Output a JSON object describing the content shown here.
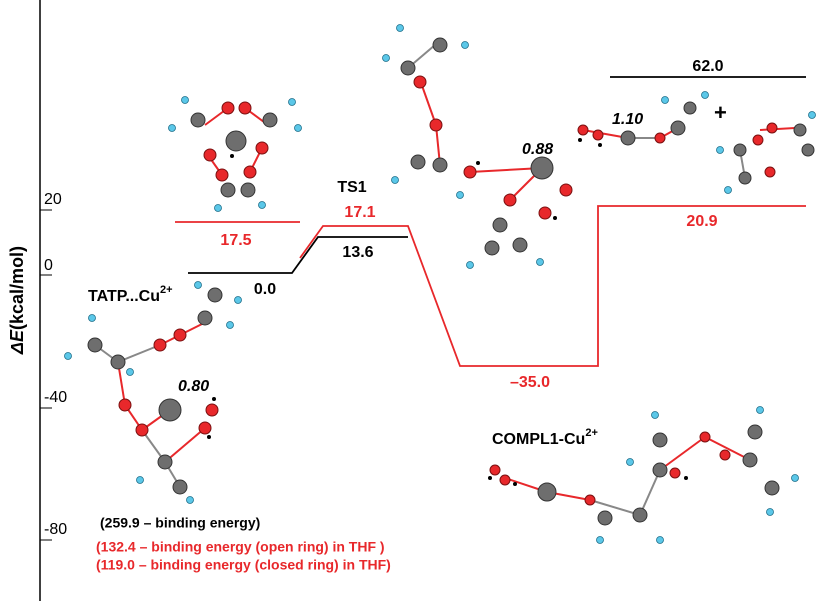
{
  "axis": {
    "label": {
      "symbol": "ΔE",
      "unit": "(kcal/mol)"
    },
    "ticks": [
      "20",
      "0",
      "-40",
      "-80"
    ]
  },
  "levels": [
    "0.0",
    "13.6",
    "17.5",
    "17.1",
    "–35.0",
    "20.9",
    "62.0"
  ],
  "states": {
    "ts": {
      "text": "TS1"
    },
    "reactant": {
      "text": "TATP...Cu",
      "superscript": "2+"
    },
    "complex": {
      "text": "COMPL1-Cu",
      "superscript": "2+"
    }
  },
  "distances": [
    "0.80",
    "0.88",
    "1.10"
  ],
  "plus": "+",
  "notes": [
    "(259.9 – binding energy)",
    "(132.4 – binding energy (open ring) in THF )",
    "(119.0 – binding energy (closed ring) in THF)"
  ]
}
